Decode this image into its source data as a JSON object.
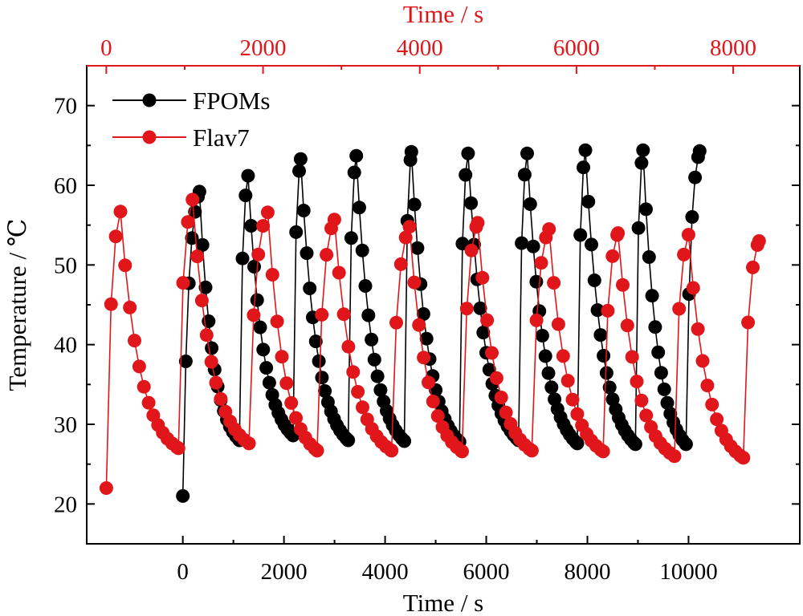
{
  "chart_data": {
    "type": "line",
    "top_axis": {
      "title": "Time / s",
      "color": "#e0161b",
      "ticks": [
        "0",
        "2000",
        "4000",
        "6000",
        "8000"
      ],
      "tick_values": [
        0,
        2000,
        4000,
        6000,
        8000
      ],
      "xlim": [
        -250,
        8850
      ]
    },
    "bottom_axis": {
      "title": "Time / s",
      "ticks": [
        "0",
        "2000",
        "4000",
        "6000",
        "8000",
        "10000"
      ],
      "tick_values": [
        0,
        2000,
        4000,
        6000,
        8000,
        10000
      ],
      "xlim": [
        -1900,
        12200
      ]
    },
    "y_axis": {
      "title": "Temperature / ℃",
      "ticks": [
        "20",
        "30",
        "40",
        "50",
        "60",
        "70"
      ],
      "tick_values": [
        20,
        30,
        40,
        50,
        60,
        70
      ],
      "ylim": [
        15,
        75
      ]
    },
    "legend_position": "top-left",
    "grid": false,
    "series": [
      {
        "name": "FPOMs",
        "axis": "bottom",
        "color": "#000000",
        "start_temp": 21,
        "cycles": [
          {
            "t_off": 0,
            "t_peak": 330,
            "peak": 59.2,
            "t_end": 1120,
            "trough": 28.0
          },
          {
            "t_off": 1120,
            "t_peak": 1290,
            "peak": 61.2,
            "t_end": 2180,
            "trough": 28.6
          },
          {
            "t_off": 2180,
            "t_peak": 2330,
            "peak": 63.3,
            "t_end": 3270,
            "trough": 28.0
          },
          {
            "t_off": 3270,
            "t_peak": 3430,
            "peak": 63.7,
            "t_end": 4380,
            "trough": 27.9
          },
          {
            "t_off": 4380,
            "t_peak": 4520,
            "peak": 64.2,
            "t_end": 5470,
            "trough": 27.8
          },
          {
            "t_off": 5470,
            "t_peak": 5640,
            "peak": 64.0,
            "t_end": 6640,
            "trough": 28.0
          },
          {
            "t_off": 6640,
            "t_peak": 6810,
            "peak": 64.0,
            "t_end": 7800,
            "trough": 27.6
          },
          {
            "t_off": 7800,
            "t_peak": 7960,
            "peak": 64.4,
            "t_end": 8950,
            "trough": 27.5
          },
          {
            "t_off": 8950,
            "t_peak": 9100,
            "peak": 64.4,
            "t_end": 9950,
            "trough": 27.5
          },
          {
            "t_off": 9950,
            "t_peak": 10220,
            "peak": 64.3,
            "t_end": 10220,
            "trough": 64.3
          }
        ]
      },
      {
        "name": "Flav7",
        "axis": "top",
        "color": "#e0161b",
        "start_temp": 22,
        "cycles": [
          {
            "t_off": 0,
            "t_peak": 180,
            "peak": 56.7,
            "t_end": 920,
            "trough": 27.0
          },
          {
            "t_off": 920,
            "t_peak": 1100,
            "peak": 58.2,
            "t_end": 1820,
            "trough": 27.6
          },
          {
            "t_off": 1820,
            "t_peak": 2060,
            "peak": 56.6,
            "t_end": 2690,
            "trough": 26.7
          },
          {
            "t_off": 2690,
            "t_peak": 2910,
            "peak": 55.7,
            "t_end": 3640,
            "trough": 26.7
          },
          {
            "t_off": 3640,
            "t_peak": 3870,
            "peak": 54.8,
            "t_end": 4540,
            "trough": 26.6
          },
          {
            "t_off": 4540,
            "t_peak": 4740,
            "peak": 55.3,
            "t_end": 5430,
            "trough": 26.7
          },
          {
            "t_off": 5430,
            "t_peak": 5650,
            "peak": 54.5,
            "t_end": 6340,
            "trough": 26.6
          },
          {
            "t_off": 6340,
            "t_peak": 6530,
            "peak": 54.0,
            "t_end": 7250,
            "trough": 26.0
          },
          {
            "t_off": 7250,
            "t_peak": 7430,
            "peak": 53.8,
            "t_end": 8130,
            "trough": 25.8
          },
          {
            "t_off": 8130,
            "t_peak": 8330,
            "peak": 53.0,
            "t_end": 8330,
            "trough": 53.0
          }
        ]
      }
    ]
  }
}
